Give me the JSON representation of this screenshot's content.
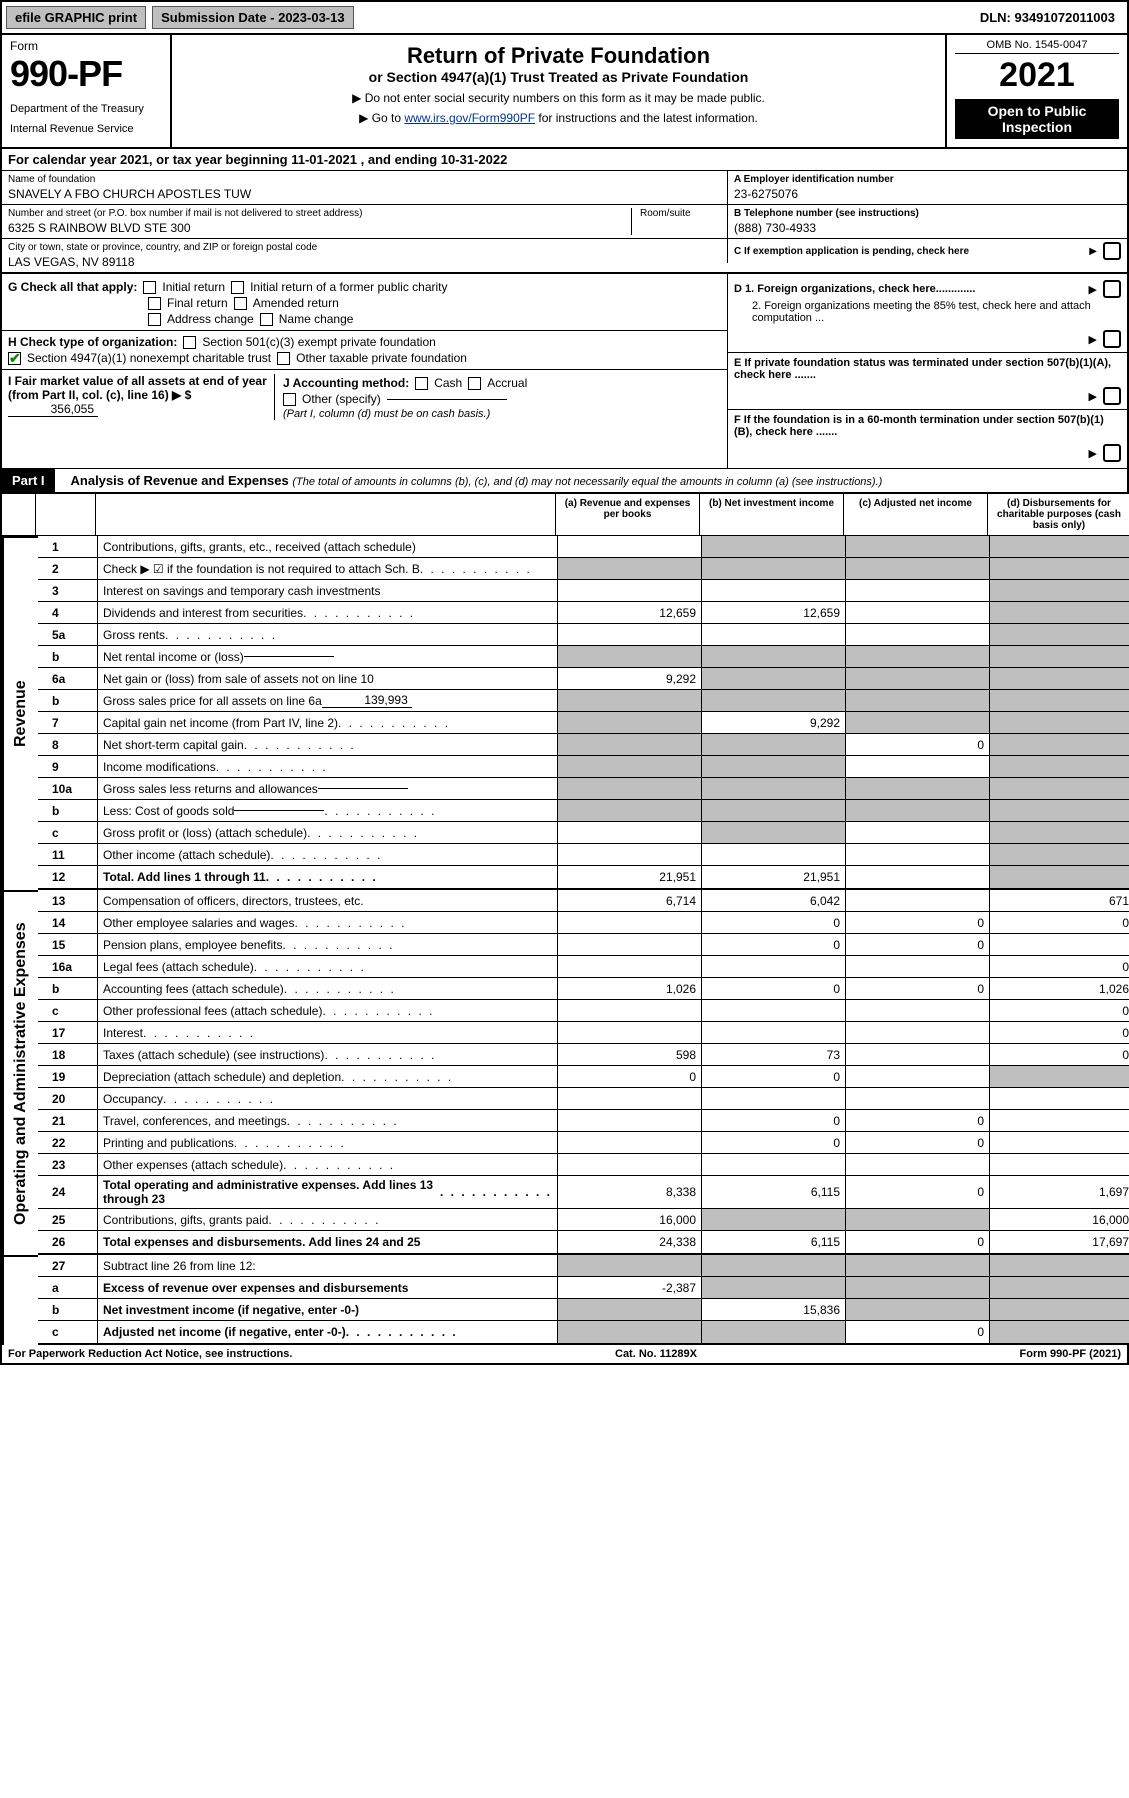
{
  "top_bar": {
    "efile": "efile GRAPHIC print",
    "submission_date_label": "Submission Date - 2023-03-13",
    "dln": "DLN: 93491072011003"
  },
  "header": {
    "form_label": "Form",
    "form_number": "990-PF",
    "dept1": "Department of the Treasury",
    "dept2": "Internal Revenue Service",
    "title": "Return of Private Foundation",
    "subtitle": "or Section 4947(a)(1) Trust Treated as Private Foundation",
    "instr1": "▶ Do not enter social security numbers on this form as it may be made public.",
    "instr2_pre": "▶ Go to ",
    "instr2_link": "www.irs.gov/Form990PF",
    "instr2_post": " for instructions and the latest information.",
    "omb": "OMB No. 1545-0047",
    "year": "2021",
    "open_pub": "Open to Public Inspection"
  },
  "cal_year": {
    "text_pre": "For calendar year 2021, or tax year beginning ",
    "begin": "11-01-2021",
    "text_mid": " , and ending ",
    "end": "10-31-2022"
  },
  "id_block": {
    "name_label": "Name of foundation",
    "name": "SNAVELY A FBO CHURCH APOSTLES TUW",
    "addr_label": "Number and street (or P.O. box number if mail is not delivered to street address)",
    "addr": "6325 S RAINBOW BLVD STE 300",
    "room_label": "Room/suite",
    "city_label": "City or town, state or province, country, and ZIP or foreign postal code",
    "city": "LAS VEGAS, NV  89118",
    "ein_label": "A Employer identification number",
    "ein": "23-6275076",
    "tel_label": "B Telephone number (see instructions)",
    "tel": "(888) 730-4933",
    "c_label": "C If exemption application is pending, check here",
    "d1_label": "D 1. Foreign organizations, check here.............",
    "d2_label": "2. Foreign organizations meeting the 85% test, check here and attach computation ...",
    "e_label": "E If private foundation status was terminated under section 507(b)(1)(A), check here .......",
    "f_label": "F If the foundation is in a 60-month termination under section 507(b)(1)(B), check here .......",
    "g_label": "G Check all that apply:",
    "g_opts": [
      "Initial return",
      "Initial return of a former public charity",
      "Final return",
      "Amended return",
      "Address change",
      "Name change"
    ],
    "h_label": "H Check type of organization:",
    "h_opts": [
      "Section 501(c)(3) exempt private foundation",
      "Section 4947(a)(1) nonexempt charitable trust",
      "Other taxable private foundation"
    ],
    "i_label": "I Fair market value of all assets at end of year (from Part II, col. (c), line 16) ▶ $",
    "i_value": "356,055",
    "j_label": "J Accounting method:",
    "j_opts": [
      "Cash",
      "Accrual",
      "Other (specify)"
    ],
    "j_note": "(Part I, column (d) must be on cash basis.)"
  },
  "part1": {
    "label": "Part I",
    "title": "Analysis of Revenue and Expenses",
    "title_em": " (The total of amounts in columns (b), (c), and (d) may not necessarily equal the amounts in column (a) (see instructions).)",
    "col_a": "(a) Revenue and expenses per books",
    "col_b": "(b) Net investment income",
    "col_c": "(c) Adjusted net income",
    "col_d": "(d) Disbursements for charitable purposes (cash basis only)"
  },
  "sections": {
    "revenue": "Revenue",
    "expenses": "Operating and Administrative Expenses"
  },
  "rows": [
    {
      "ln": "1",
      "desc": "Contributions, gifts, grants, etc., received (attach schedule)",
      "a": "",
      "b": "-shade-",
      "c": "-shade-",
      "d": "-shade-"
    },
    {
      "ln": "2",
      "desc": "Check ▶ ☑ if the foundation is not required to attach Sch. B",
      "a": "-shade-",
      "b": "-shade-",
      "c": "-shade-",
      "d": "-shade-",
      "dots": true
    },
    {
      "ln": "3",
      "desc": "Interest on savings and temporary cash investments",
      "a": "",
      "b": "",
      "c": "",
      "d": "-shade-"
    },
    {
      "ln": "4",
      "desc": "Dividends and interest from securities",
      "a": "12,659",
      "b": "12,659",
      "c": "",
      "d": "-shade-",
      "dots": true
    },
    {
      "ln": "5a",
      "desc": "Gross rents",
      "a": "",
      "b": "",
      "c": "",
      "d": "-shade-",
      "dots": true
    },
    {
      "ln": "b",
      "desc": "Net rental income or (loss)",
      "a": "-shade-",
      "b": "-shade-",
      "c": "-shade-",
      "d": "-shade-",
      "inline": ""
    },
    {
      "ln": "6a",
      "desc": "Net gain or (loss) from sale of assets not on line 10",
      "a": "9,292",
      "b": "-shade-",
      "c": "-shade-",
      "d": "-shade-"
    },
    {
      "ln": "b",
      "desc": "Gross sales price for all assets on line 6a",
      "a": "-shade-",
      "b": "-shade-",
      "c": "-shade-",
      "d": "-shade-",
      "inline": "139,993"
    },
    {
      "ln": "7",
      "desc": "Capital gain net income (from Part IV, line 2)",
      "a": "-shade-",
      "b": "9,292",
      "c": "-shade-",
      "d": "-shade-",
      "dots": true
    },
    {
      "ln": "8",
      "desc": "Net short-term capital gain",
      "a": "-shade-",
      "b": "-shade-",
      "c": "0",
      "d": "-shade-",
      "dots": true
    },
    {
      "ln": "9",
      "desc": "Income modifications",
      "a": "-shade-",
      "b": "-shade-",
      "c": "",
      "d": "-shade-",
      "dots": true
    },
    {
      "ln": "10a",
      "desc": "Gross sales less returns and allowances",
      "a": "-shade-",
      "b": "-shade-",
      "c": "-shade-",
      "d": "-shade-",
      "inline": ""
    },
    {
      "ln": "b",
      "desc": "Less: Cost of goods sold",
      "a": "-shade-",
      "b": "-shade-",
      "c": "-shade-",
      "d": "-shade-",
      "dots": true,
      "inline": ""
    },
    {
      "ln": "c",
      "desc": "Gross profit or (loss) (attach schedule)",
      "a": "",
      "b": "-shade-",
      "c": "",
      "d": "-shade-",
      "dots": true
    },
    {
      "ln": "11",
      "desc": "Other income (attach schedule)",
      "a": "",
      "b": "",
      "c": "",
      "d": "-shade-",
      "dots": true
    },
    {
      "ln": "12",
      "desc": "Total. Add lines 1 through 11",
      "a": "21,951",
      "b": "21,951",
      "c": "",
      "d": "-shade-",
      "bold": true,
      "dots": true
    }
  ],
  "exp_rows": [
    {
      "ln": "13",
      "desc": "Compensation of officers, directors, trustees, etc.",
      "a": "6,714",
      "b": "6,042",
      "c": "",
      "d": "671"
    },
    {
      "ln": "14",
      "desc": "Other employee salaries and wages",
      "a": "",
      "b": "0",
      "c": "0",
      "d": "0",
      "dots": true
    },
    {
      "ln": "15",
      "desc": "Pension plans, employee benefits",
      "a": "",
      "b": "0",
      "c": "0",
      "d": "",
      "dots": true
    },
    {
      "ln": "16a",
      "desc": "Legal fees (attach schedule)",
      "a": "",
      "b": "",
      "c": "",
      "d": "0",
      "dots": true
    },
    {
      "ln": "b",
      "desc": "Accounting fees (attach schedule)",
      "a": "1,026",
      "b": "0",
      "c": "0",
      "d": "1,026",
      "dots": true
    },
    {
      "ln": "c",
      "desc": "Other professional fees (attach schedule)",
      "a": "",
      "b": "",
      "c": "",
      "d": "0",
      "dots": true
    },
    {
      "ln": "17",
      "desc": "Interest",
      "a": "",
      "b": "",
      "c": "",
      "d": "0",
      "dots": true
    },
    {
      "ln": "18",
      "desc": "Taxes (attach schedule) (see instructions)",
      "a": "598",
      "b": "73",
      "c": "",
      "d": "0",
      "dots": true
    },
    {
      "ln": "19",
      "desc": "Depreciation (attach schedule) and depletion",
      "a": "0",
      "b": "0",
      "c": "",
      "d": "-shade-",
      "dots": true
    },
    {
      "ln": "20",
      "desc": "Occupancy",
      "a": "",
      "b": "",
      "c": "",
      "d": "",
      "dots": true
    },
    {
      "ln": "21",
      "desc": "Travel, conferences, and meetings",
      "a": "",
      "b": "0",
      "c": "0",
      "d": "",
      "dots": true
    },
    {
      "ln": "22",
      "desc": "Printing and publications",
      "a": "",
      "b": "0",
      "c": "0",
      "d": "",
      "dots": true
    },
    {
      "ln": "23",
      "desc": "Other expenses (attach schedule)",
      "a": "",
      "b": "",
      "c": "",
      "d": "",
      "dots": true
    },
    {
      "ln": "24",
      "desc": "Total operating and administrative expenses. Add lines 13 through 23",
      "a": "8,338",
      "b": "6,115",
      "c": "0",
      "d": "1,697",
      "bold": true,
      "dots": true
    },
    {
      "ln": "25",
      "desc": "Contributions, gifts, grants paid",
      "a": "16,000",
      "b": "-shade-",
      "c": "-shade-",
      "d": "16,000",
      "dots": true
    },
    {
      "ln": "26",
      "desc": "Total expenses and disbursements. Add lines 24 and 25",
      "a": "24,338",
      "b": "6,115",
      "c": "0",
      "d": "17,697",
      "bold": true
    }
  ],
  "final_rows": [
    {
      "ln": "27",
      "desc": "Subtract line 26 from line 12:",
      "a": "-shade-",
      "b": "-shade-",
      "c": "-shade-",
      "d": "-shade-"
    },
    {
      "ln": "a",
      "desc": "Excess of revenue over expenses and disbursements",
      "a": "-2,387",
      "b": "-shade-",
      "c": "-shade-",
      "d": "-shade-",
      "bold": true
    },
    {
      "ln": "b",
      "desc": "Net investment income (if negative, enter -0-)",
      "a": "-shade-",
      "b": "15,836",
      "c": "-shade-",
      "d": "-shade-",
      "bold": true
    },
    {
      "ln": "c",
      "desc": "Adjusted net income (if negative, enter -0-)",
      "a": "-shade-",
      "b": "-shade-",
      "c": "0",
      "d": "-shade-",
      "bold": true,
      "dots": true
    }
  ],
  "footer": {
    "left": "For Paperwork Reduction Act Notice, see instructions.",
    "mid": "Cat. No. 11289X",
    "right": "Form 990-PF (2021)"
  },
  "colors": {
    "shade": "#bfbfbf",
    "link": "#003399",
    "check": "#0a8a0a"
  }
}
